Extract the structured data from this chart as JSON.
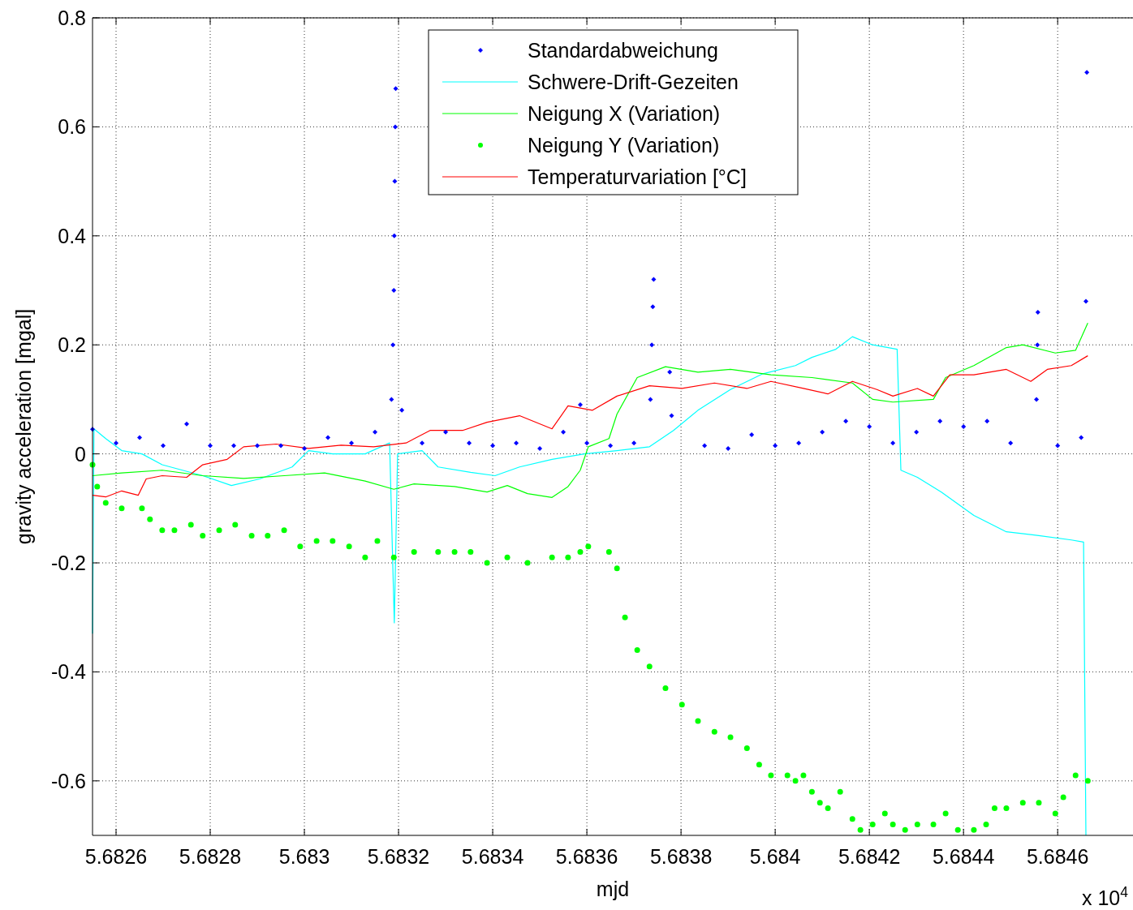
{
  "chart_data": {
    "type": "line",
    "xlabel": "mjd",
    "ylabel": "gravity acceleration [mgal]",
    "annotations": [
      "x 10$^{4}$"
    ],
    "xlim": [
      5.68255,
      5.68476
    ],
    "ylim": [
      -0.7,
      0.8
    ],
    "xticks": [
      5.6826,
      5.6828,
      5.683,
      5.6832,
      5.6834,
      5.6836,
      5.6838,
      5.684,
      5.6842,
      5.6844,
      5.6846
    ],
    "yticks": [
      -0.6,
      -0.4,
      -0.2,
      0,
      0.2,
      0.4,
      0.6,
      0.8
    ],
    "grid": true,
    "legend": "top",
    "series": [
      {
        "name": "Standardabweichung",
        "type": "scatter",
        "marker": "diamond",
        "color": "#0000ff",
        "x": [
          5.68255,
          5.6826,
          5.68265,
          5.6827,
          5.68275,
          5.6828,
          5.68285,
          5.6829,
          5.68295,
          5.683,
          5.68305,
          5.6831,
          5.68315,
          5.683185,
          5.683188,
          5.68319,
          5.683191,
          5.683192,
          5.683193,
          5.683194,
          5.683207,
          5.68325,
          5.6833,
          5.68335,
          5.6834,
          5.68345,
          5.6835,
          5.68355,
          5.683586,
          5.6836,
          5.68365,
          5.6837,
          5.683735,
          5.683738,
          5.68374,
          5.683742,
          5.683776,
          5.68378,
          5.68385,
          5.6839,
          5.68395,
          5.684,
          5.68405,
          5.6841,
          5.68415,
          5.6842,
          5.68425,
          5.6843,
          5.68435,
          5.6844,
          5.68445,
          5.6845,
          5.684555,
          5.684557,
          5.684558,
          5.6846,
          5.68465,
          5.68466,
          5.684662
        ],
        "values": [
          0.045,
          0.02,
          0.03,
          0.015,
          0.055,
          0.015,
          0.015,
          0.015,
          0.015,
          0.01,
          0.03,
          0.02,
          0.04,
          0.1,
          0.2,
          0.3,
          0.4,
          0.5,
          0.6,
          0.67,
          0.08,
          0.02,
          0.04,
          0.02,
          0.015,
          0.02,
          0.01,
          0.04,
          0.09,
          0.02,
          0.015,
          0.02,
          0.1,
          0.2,
          0.27,
          0.32,
          0.15,
          0.07,
          0.015,
          0.01,
          0.035,
          0.015,
          0.02,
          0.04,
          0.06,
          0.05,
          0.02,
          0.04,
          0.06,
          0.05,
          0.06,
          0.02,
          0.1,
          0.2,
          0.26,
          0.015,
          0.03,
          0.28,
          0.7
        ]
      },
      {
        "name": "Schwere-Drift-Gezeiten",
        "color": "#00ffff",
        "x": [
          5.68255,
          5.682553,
          5.682578,
          5.682612,
          5.682655,
          5.682698,
          5.682784,
          5.682845,
          5.682905,
          5.682974,
          5.683009,
          5.68306,
          5.683129,
          5.683181,
          5.683191,
          5.683198,
          5.68325,
          5.683284,
          5.683353,
          5.683405,
          5.683457,
          5.683526,
          5.683595,
          5.683664,
          5.683733,
          5.683784,
          5.683836,
          5.683905,
          5.683974,
          5.684043,
          5.684078,
          5.684129,
          5.684164,
          5.684207,
          5.684259,
          5.684267,
          5.684302,
          5.684353,
          5.684422,
          5.684491,
          5.68456,
          5.684629,
          5.684655,
          5.68466
        ],
        "values": [
          -0.33,
          0.046,
          0.028,
          0.006,
          0,
          -0.02,
          -0.04,
          -0.058,
          -0.046,
          -0.024,
          0.006,
          0,
          0,
          0.02,
          -0.31,
          0,
          0.006,
          -0.024,
          -0.034,
          -0.04,
          -0.024,
          -0.01,
          0,
          0.006,
          0.013,
          0.043,
          0.08,
          0.118,
          0.147,
          0.162,
          0.177,
          0.192,
          0.215,
          0.2,
          0.192,
          -0.03,
          -0.043,
          -0.07,
          -0.113,
          -0.143,
          -0.15,
          -0.158,
          -0.162,
          -0.7
        ]
      },
      {
        "name": "Neigung X (Variation)",
        "color": "#00ff00",
        "x": [
          5.68255,
          5.682612,
          5.682698,
          5.682784,
          5.682871,
          5.682957,
          5.683043,
          5.683129,
          5.68319,
          5.683233,
          5.683319,
          5.683388,
          5.683431,
          5.683474,
          5.683526,
          5.68356,
          5.683586,
          5.683603,
          5.683647,
          5.683664,
          5.683707,
          5.683767,
          5.683836,
          5.683905,
          5.683991,
          5.684078,
          5.684164,
          5.684207,
          5.68425,
          5.684336,
          5.684362,
          5.684422,
          5.684491,
          5.684526,
          5.684595,
          5.684638,
          5.684664
        ],
        "values": [
          -0.04,
          -0.035,
          -0.03,
          -0.04,
          -0.045,
          -0.04,
          -0.035,
          -0.05,
          -0.065,
          -0.055,
          -0.06,
          -0.07,
          -0.058,
          -0.073,
          -0.08,
          -0.06,
          -0.03,
          0.013,
          0.028,
          0.073,
          0.14,
          0.16,
          0.15,
          0.155,
          0.145,
          0.14,
          0.13,
          0.1,
          0.095,
          0.1,
          0.14,
          0.162,
          0.195,
          0.2,
          0.185,
          0.19,
          0.24
        ]
      },
      {
        "name": "Neigung Y (Variation)",
        "type": "scatter",
        "marker": "circle",
        "color": "#00ff00",
        "x": [
          5.68255,
          5.68256,
          5.682578,
          5.682612,
          5.682655,
          5.682672,
          5.682698,
          5.682724,
          5.682759,
          5.682784,
          5.682819,
          5.682853,
          5.682888,
          5.682922,
          5.682957,
          5.682991,
          5.683026,
          5.68306,
          5.683095,
          5.683129,
          5.683155,
          5.68319,
          5.683233,
          5.683284,
          5.683319,
          5.683353,
          5.683388,
          5.683431,
          5.683474,
          5.683526,
          5.68356,
          5.683586,
          5.683603,
          5.683647,
          5.683664,
          5.683681,
          5.683707,
          5.683733,
          5.683767,
          5.683802,
          5.683836,
          5.683871,
          5.683905,
          5.68394,
          5.683966,
          5.683991,
          5.684026,
          5.684043,
          5.68406,
          5.684078,
          5.684095,
          5.684112,
          5.684138,
          5.684164,
          5.684181,
          5.684207,
          5.684233,
          5.68425,
          5.684276,
          5.684302,
          5.684336,
          5.684362,
          5.684388,
          5.684422,
          5.684448,
          5.684466,
          5.684491,
          5.684526,
          5.68456,
          5.684595,
          5.684612,
          5.684638,
          5.684664
        ],
        "values": [
          -0.02,
          -0.06,
          -0.09,
          -0.1,
          -0.1,
          -0.12,
          -0.14,
          -0.14,
          -0.13,
          -0.15,
          -0.14,
          -0.13,
          -0.15,
          -0.15,
          -0.14,
          -0.17,
          -0.16,
          -0.16,
          -0.17,
          -0.19,
          -0.16,
          -0.19,
          -0.18,
          -0.18,
          -0.18,
          -0.18,
          -0.2,
          -0.19,
          -0.2,
          -0.19,
          -0.19,
          -0.18,
          -0.17,
          -0.18,
          -0.21,
          -0.3,
          -0.36,
          -0.39,
          -0.43,
          -0.46,
          -0.49,
          -0.51,
          -0.52,
          -0.54,
          -0.57,
          -0.59,
          -0.59,
          -0.6,
          -0.59,
          -0.62,
          -0.64,
          -0.65,
          -0.62,
          -0.67,
          -0.69,
          -0.68,
          -0.66,
          -0.68,
          -0.69,
          -0.68,
          -0.68,
          -0.66,
          -0.69,
          -0.69,
          -0.68,
          -0.65,
          -0.65,
          -0.64,
          -0.64,
          -0.66,
          -0.63,
          -0.59,
          -0.6
        ]
      },
      {
        "name": "Temperaturvariation [°C]",
        "color": "#ff0000",
        "x": [
          5.68255,
          5.682578,
          5.682612,
          5.682647,
          5.682664,
          5.682698,
          5.68275,
          5.682784,
          5.682836,
          5.682871,
          5.68294,
          5.683009,
          5.683078,
          5.683147,
          5.683216,
          5.683267,
          5.683336,
          5.683388,
          5.683457,
          5.683526,
          5.68356,
          5.683612,
          5.683664,
          5.683733,
          5.683802,
          5.683871,
          5.68394,
          5.683991,
          5.68406,
          5.684112,
          5.684164,
          5.684216,
          5.68425,
          5.684302,
          5.684336,
          5.684371,
          5.684422,
          5.684491,
          5.684543,
          5.684578,
          5.684629,
          5.684664
        ],
        "values": [
          -0.076,
          -0.079,
          -0.068,
          -0.076,
          -0.046,
          -0.04,
          -0.043,
          -0.02,
          -0.01,
          0.013,
          0.018,
          0.01,
          0.016,
          0.013,
          0.02,
          0.043,
          0.043,
          0.058,
          0.07,
          0.046,
          0.088,
          0.08,
          0.106,
          0.125,
          0.12,
          0.13,
          0.12,
          0.133,
          0.12,
          0.11,
          0.133,
          0.118,
          0.106,
          0.12,
          0.106,
          0.145,
          0.145,
          0.155,
          0.133,
          0.155,
          0.162,
          0.18
        ]
      }
    ]
  }
}
